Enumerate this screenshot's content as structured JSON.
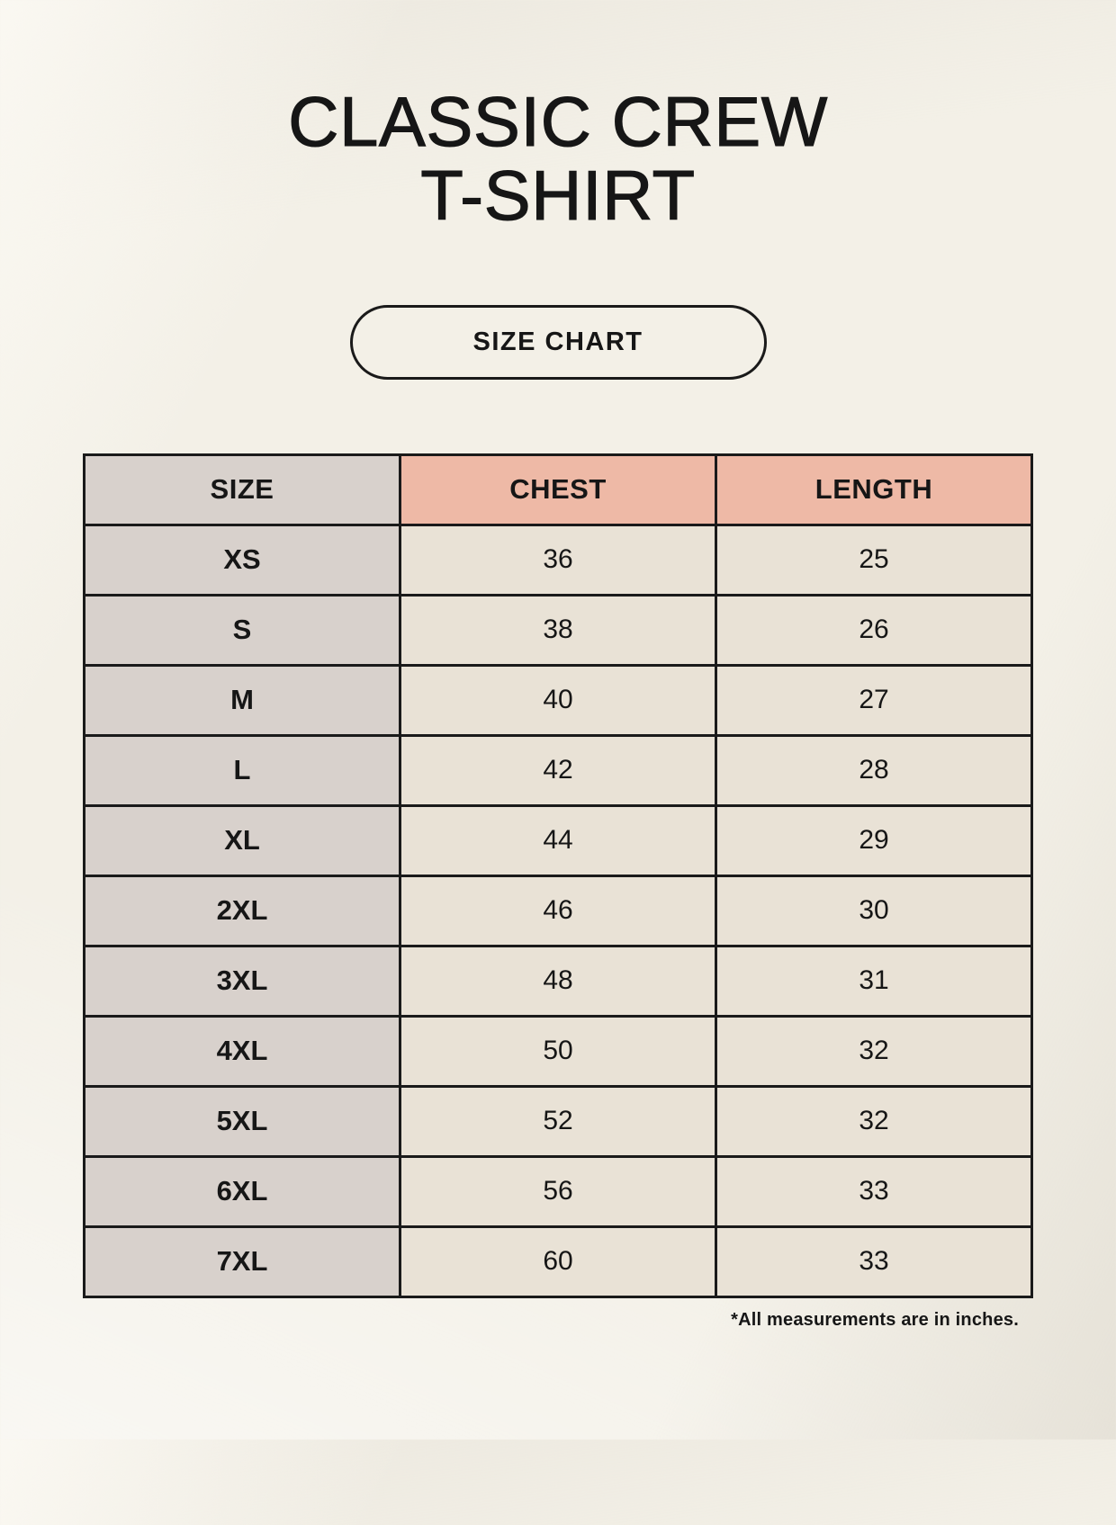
{
  "page": {
    "title_line1": "CLASSIC CREW",
    "title_line2": "T-SHIRT",
    "badge_label": "SIZE CHART",
    "footnote": "*All measurements are in inches."
  },
  "colors": {
    "background": "#f3f0e7",
    "header_accent": "#eeb9a6",
    "size_column": "#d8d1cc",
    "data_cell": "#e9e2d6",
    "border": "#1a1a1a",
    "text": "#161616"
  },
  "chart_data": {
    "type": "table",
    "title": "SIZE CHART",
    "subtitle": "CLASSIC CREW T-SHIRT",
    "units": "inches",
    "columns": [
      "SIZE",
      "CHEST",
      "LENGTH"
    ],
    "rows": [
      [
        "XS",
        36,
        25
      ],
      [
        "S",
        38,
        26
      ],
      [
        "M",
        40,
        27
      ],
      [
        "L",
        42,
        28
      ],
      [
        "XL",
        44,
        29
      ],
      [
        "2XL",
        46,
        30
      ],
      [
        "3XL",
        48,
        31
      ],
      [
        "4XL",
        50,
        32
      ],
      [
        "5XL",
        52,
        32
      ],
      [
        "6XL",
        56,
        33
      ],
      [
        "7XL",
        60,
        33
      ]
    ]
  }
}
